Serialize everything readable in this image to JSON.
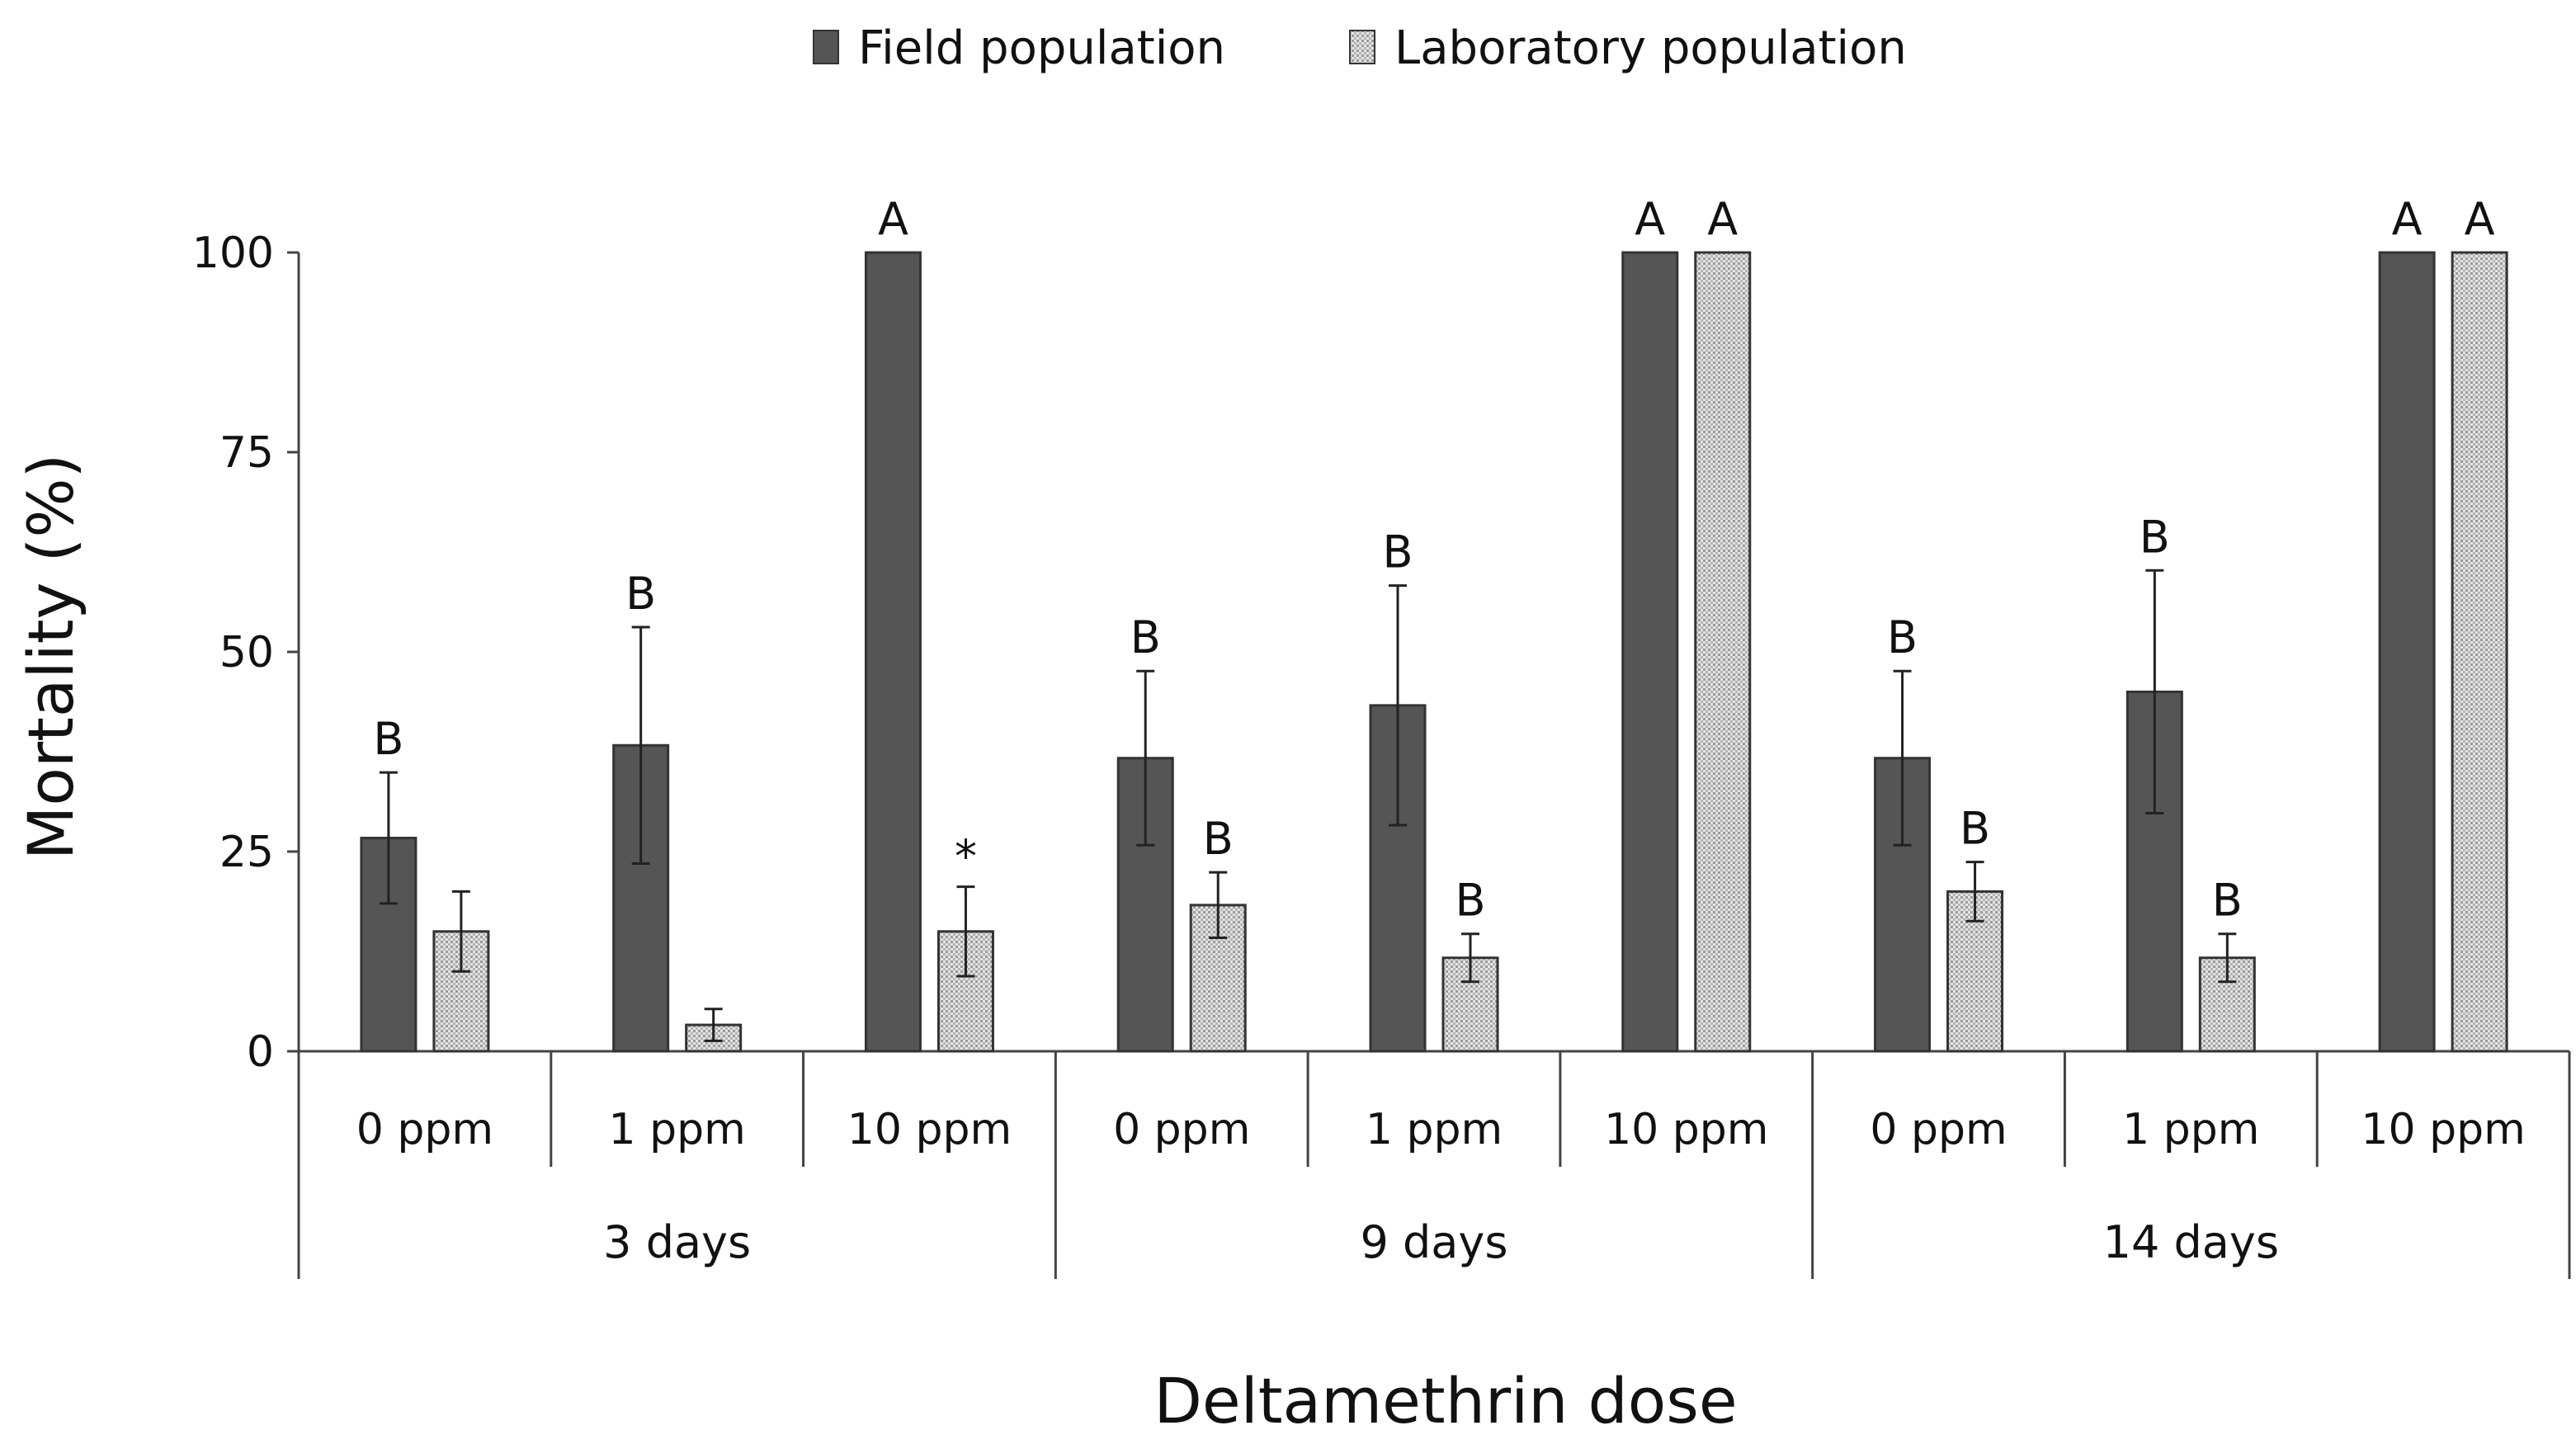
{
  "chart_data": {
    "type": "bar",
    "title": "",
    "xlabel": "Deltamethrin dose",
    "ylabel": "Mortality (%)",
    "ylim": [
      0,
      100
    ],
    "yticks": [
      "0",
      "25",
      "50",
      "75",
      "100"
    ],
    "ytick_values": [
      0,
      25,
      50,
      75,
      100
    ],
    "grid": false,
    "legend_position": "top-center",
    "groups": [
      {
        "label": "3 days",
        "categories": [
          "0 ppm",
          "1 ppm",
          "10 ppm"
        ]
      },
      {
        "label": "9 days",
        "categories": [
          "0 ppm",
          "1 ppm",
          "10 ppm"
        ]
      },
      {
        "label": "14 days",
        "categories": [
          "0 ppm",
          "1 ppm",
          "10 ppm"
        ]
      }
    ],
    "categories": [
      "0 ppm",
      "1 ppm",
      "10 ppm",
      "0 ppm",
      "1 ppm",
      "10 ppm",
      "0 ppm",
      "1 ppm",
      "10 ppm"
    ],
    "series": [
      {
        "name": "Field population",
        "color": "#555555",
        "pattern": "solid",
        "values": [
          26.7,
          38.3,
          100,
          36.7,
          43.3,
          100,
          36.7,
          45.0,
          100
        ],
        "errors": [
          8.2,
          14.8,
          0,
          10.9,
          15.0,
          0,
          10.9,
          15.2,
          0
        ],
        "annotations": [
          "B",
          "B",
          "A",
          "B",
          "B",
          "A",
          "B",
          "B",
          "A"
        ]
      },
      {
        "name": "Laboratory population",
        "color": "#cfcfcf",
        "pattern": "dotted",
        "values": [
          15.0,
          3.3,
          15.0,
          18.3,
          11.7,
          100,
          20.0,
          11.7,
          100
        ],
        "errors": [
          5.0,
          2.0,
          5.6,
          4.1,
          3.0,
          0,
          3.7,
          3.0,
          0
        ],
        "annotations": [
          "",
          "",
          "*",
          "B",
          "B",
          "A",
          "B",
          "B",
          "A"
        ]
      }
    ]
  }
}
